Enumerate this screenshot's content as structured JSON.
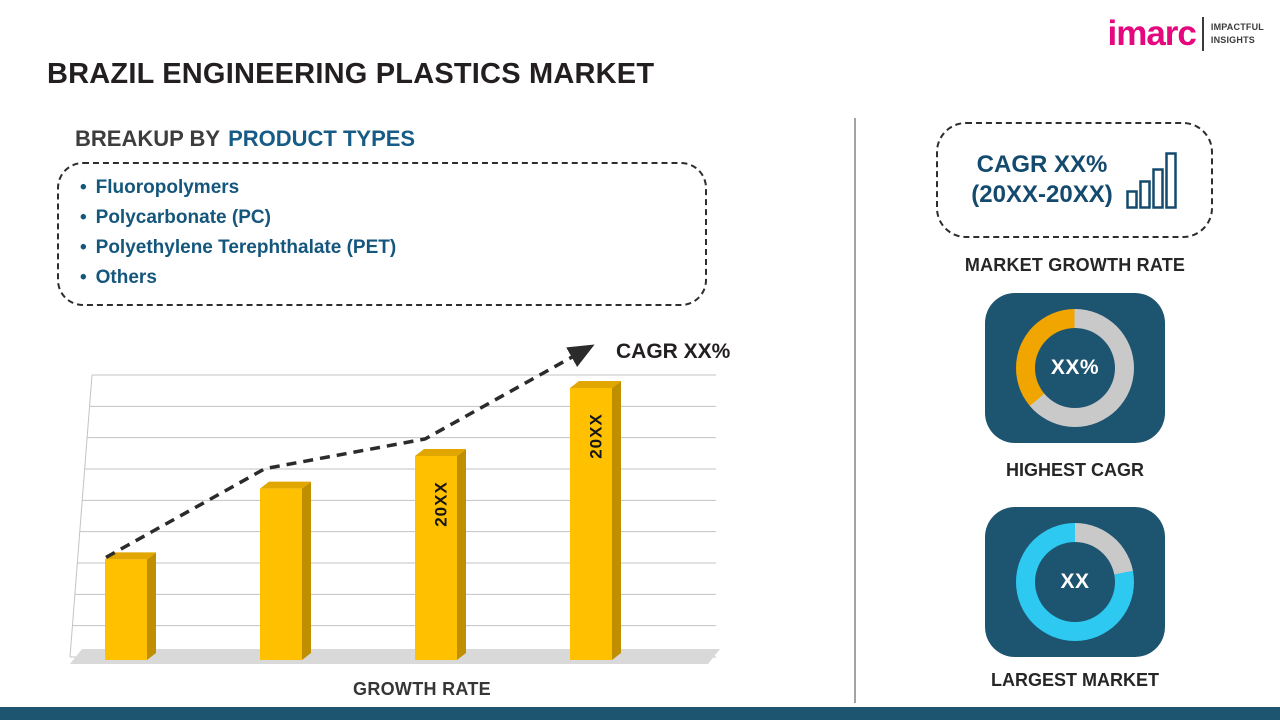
{
  "page": {
    "title": "BRAZIL ENGINEERING PLASTICS MARKET"
  },
  "logo": {
    "brand": "imarc",
    "tagline_line1": "IMPACTFUL",
    "tagline_line2": "INSIGHTS"
  },
  "breakup": {
    "heading_prefix": "BREAKUP BY",
    "heading_highlight": "PRODUCT TYPES",
    "items": [
      "Fluoropolymers",
      "Polycarbonate (PC)",
      "Polyethylene Terephthalate (PET)",
      "Others"
    ]
  },
  "right_panel": {
    "cagr_line1": "CAGR XX%",
    "cagr_line2": "(20XX-20XX)",
    "market_growth_rate_label": "MARKET GROWTH RATE"
  },
  "chart_data": [
    {
      "id": "growth-bar-chart",
      "type": "bar",
      "title": "",
      "xlabel": "GROWTH RATE",
      "annotation": "CAGR XX%",
      "categories": [
        "",
        "",
        "20XX",
        "20XX"
      ],
      "values": [
        37,
        63,
        75,
        100
      ],
      "value_unit": "relative-index",
      "bar_color": "#FFC000",
      "trend": "dashed-rising-arrow",
      "grid": true,
      "ylim": [
        0,
        110
      ]
    },
    {
      "id": "highest-cagr-donut",
      "type": "pie",
      "label": "XX%",
      "caption": "HIGHEST CAGR",
      "values": [
        36,
        64
      ],
      "colors": [
        "#F0A500",
        "#C9C9C9"
      ],
      "start_deg": 230
    },
    {
      "id": "largest-market-donut",
      "type": "pie",
      "label": "XX",
      "caption": "LARGEST MARKET",
      "values": [
        78,
        22
      ],
      "colors": [
        "#2EC9F0",
        "#C9C9C9"
      ],
      "start_deg": 79
    }
  ],
  "colors": {
    "brand_pink": "#E4077E",
    "accent_blue": "#15567D",
    "navy_tile": "#1D5470",
    "bar_gold": "#FFC000",
    "donut_amber": "#F0A500",
    "donut_cyan": "#2EC9F0",
    "donut_gray": "#C9C9C9",
    "footer_navy": "#1D5470"
  }
}
